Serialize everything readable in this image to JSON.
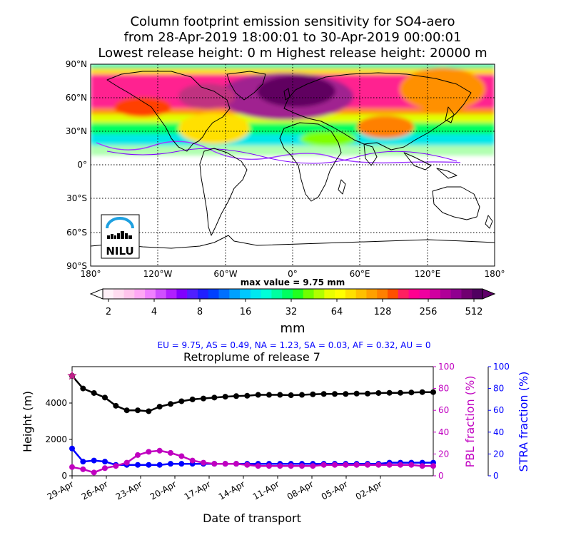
{
  "figure": {
    "title_line1": "Column footprint emission sensitivity for SO4-aero",
    "title_line2": "from 28-Apr-2019 18:00:01 to 30-Apr-2019 00:00:01",
    "title_line3": "Lowest release height: 0 m       Highest release height: 20000 m"
  },
  "map": {
    "lat_labels": [
      "90°N",
      "60°N",
      "30°N",
      "0°",
      "30°S",
      "60°S",
      "90°S"
    ],
    "lon_labels": [
      "180°",
      "120°W",
      "60°W",
      "0°",
      "60°E",
      "120°E",
      "180°"
    ],
    "logo_text": "NILU",
    "max_value_text": "max value = 9.75 mm"
  },
  "colorbar": {
    "tick_labels": [
      "2",
      "4",
      "8",
      "16",
      "32",
      "64",
      "128",
      "256",
      "512"
    ],
    "unit_label": "mm"
  },
  "regions_text": "EU = 9.75,  AS = 0.49,  NA = 1.23,  SA = 0.03,  AF = 0.32,  AU = 0",
  "colors": {
    "height_series": "#000000",
    "pbl_series": "#c000c0",
    "stra_series": "#0000ff",
    "pbl_axis": "#c000c0",
    "stra_axis": "#0000ff",
    "regions_text": "#0000ff"
  },
  "chart_data": [
    {
      "type": "heatmap",
      "title": "Column footprint emission sensitivity for SO4-aero",
      "xlabel": "",
      "ylabel": "",
      "xlim": [
        -180,
        180
      ],
      "ylim": [
        -90,
        90
      ],
      "x_ticks": [
        "180°",
        "120°W",
        "60°W",
        "0°",
        "60°E",
        "120°E",
        "180°"
      ],
      "y_ticks": [
        "90°N",
        "60°N",
        "30°N",
        "0°",
        "30°S",
        "60°S",
        "90°S"
      ],
      "colorbar_ticks": [
        2,
        4,
        8,
        16,
        32,
        64,
        128,
        256,
        512
      ],
      "colorbar_label": "mm",
      "max_value": 9.75,
      "annotation": "max value = 9.75 mm"
    },
    {
      "type": "line",
      "title": "Retroplume of release 7",
      "xlabel": "Date of transport",
      "ylabel": "Height (m)",
      "ylabel_right1": "PBL fraction (%)",
      "ylabel_right2": "STRA fraction (%)",
      "x_tick_labels": [
        "29-Apr",
        "26-Apr",
        "23-Apr",
        "20-Apr",
        "17-Apr",
        "14-Apr",
        "11-Apr",
        "08-Apr",
        "05-Apr",
        "02-Apr"
      ],
      "y_ticks": [
        0,
        2000,
        4000
      ],
      "ylim": [
        0,
        6000
      ],
      "y2_ticks": [
        0,
        20,
        40,
        60,
        80,
        100
      ],
      "y2lim": [
        0,
        100
      ],
      "y3_ticks": [
        0,
        20,
        40,
        60,
        80,
        100
      ],
      "y3lim": [
        0,
        100
      ],
      "series": [
        {
          "name": "Height (m)",
          "axis": "left",
          "values": [
            5500,
            4800,
            4550,
            4300,
            3850,
            3600,
            3600,
            3550,
            3800,
            3950,
            4100,
            4200,
            4250,
            4300,
            4350,
            4380,
            4400,
            4450,
            4450,
            4450,
            4430,
            4450,
            4480,
            4500,
            4500,
            4500,
            4520,
            4520,
            4550,
            4560,
            4560,
            4580,
            4600,
            4600
          ]
        },
        {
          "name": "PBL fraction (%)",
          "axis": "right1",
          "values": [
            8,
            6,
            3,
            7,
            9,
            12,
            19,
            22,
            23,
            21,
            18,
            14,
            12,
            11,
            11,
            11,
            10,
            9,
            9,
            9,
            9,
            9,
            9,
            10,
            10,
            10,
            10,
            10,
            10,
            10,
            10,
            10,
            9,
            9
          ]
        },
        {
          "name": "STRA fraction (%)",
          "axis": "right2",
          "values": [
            25,
            13,
            14,
            13,
            10,
            10,
            10,
            10,
            10,
            11,
            11,
            11,
            11,
            11,
            11,
            11,
            11,
            11,
            11,
            11,
            11,
            11,
            11,
            11,
            11,
            11,
            11,
            11,
            11,
            12,
            12,
            12,
            12,
            12
          ]
        }
      ]
    }
  ]
}
